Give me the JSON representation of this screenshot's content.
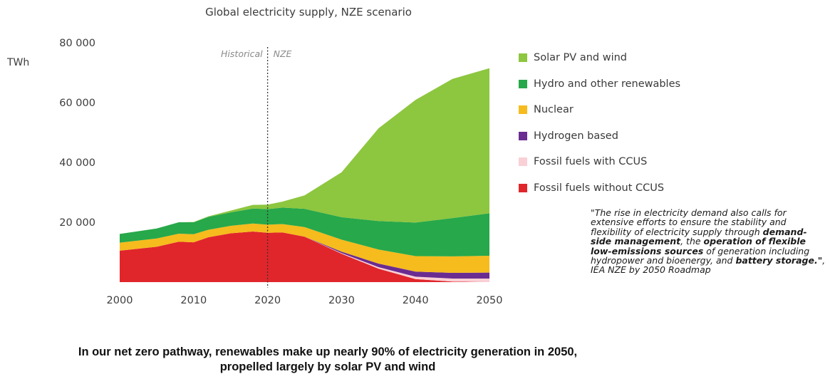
{
  "chart_data": {
    "type": "area",
    "stacked": true,
    "title": "Global electricity supply, NZE scenario",
    "ylabel": "TWh",
    "xlabel": "",
    "ylim": [
      0,
      80000
    ],
    "xlim": [
      2000,
      2050
    ],
    "x_ticks": [
      2000,
      2010,
      2020,
      2030,
      2040,
      2050
    ],
    "x_tick_labels": [
      "2000",
      "2010",
      "2020",
      "2030",
      "2040",
      "2050"
    ],
    "y_ticks": [
      20000,
      40000,
      60000,
      80000
    ],
    "y_tick_labels": [
      "20 000",
      "40 000",
      "60 000",
      "80 000"
    ],
    "grid": false,
    "divider": {
      "x": 2020,
      "left_label": "Historical",
      "right_label": "NZE"
    },
    "x": [
      2000,
      2005,
      2008,
      2010,
      2012,
      2015,
      2018,
      2020,
      2022,
      2025,
      2030,
      2035,
      2040,
      2045,
      2050
    ],
    "series": [
      {
        "name": "Fossil fuels without CCUS",
        "color": "#e0262b",
        "values": [
          10500,
          11800,
          13500,
          13300,
          15000,
          16300,
          16900,
          16500,
          16600,
          15200,
          9500,
          4500,
          1000,
          200,
          0
        ]
      },
      {
        "name": "Fossil fuels with CCUS",
        "color": "#f9d0d5",
        "values": [
          0,
          0,
          0,
          0,
          0,
          0,
          0,
          0,
          0,
          0,
          200,
          500,
          800,
          1000,
          1200
        ]
      },
      {
        "name": "Hydrogen based",
        "color": "#6a2c91",
        "values": [
          0,
          0,
          0,
          0,
          0,
          0,
          0,
          0,
          0,
          0,
          500,
          1200,
          1700,
          1900,
          2000
        ]
      },
      {
        "name": "Nuclear",
        "color": "#f6bb1d",
        "values": [
          2700,
          2800,
          2700,
          2700,
          2500,
          2500,
          2700,
          2700,
          2800,
          3200,
          4000,
          4700,
          5200,
          5500,
          5600
        ]
      },
      {
        "name": "Hydro and other renewables",
        "color": "#27a84a",
        "values": [
          2900,
          3300,
          3800,
          4000,
          4300,
          4500,
          5000,
          5200,
          5500,
          6100,
          7500,
          9500,
          11200,
          12800,
          14200
        ]
      },
      {
        "name": "Solar PV and wind",
        "color": "#8dc63f",
        "values": [
          0,
          0,
          0,
          100,
          200,
          600,
          1200,
          1500,
          2000,
          4500,
          15000,
          31000,
          41000,
          46500,
          48500
        ]
      }
    ]
  },
  "quote": {
    "t1": "\"The rise in electricity demand also calls for extensive efforts to ensure the stability and flexibility of electricity supply through ",
    "b1": "demand-side management",
    "t2": ", the ",
    "b2": "operation of flexible low-emissions sources",
    "t3": " of generation including hydropower and bioenergy, and ",
    "b3": "battery storage.\"",
    "t4": ", IEA NZE by 2050 Roadmap"
  },
  "caption": {
    "line1": "In our net zero pathway, renewables make up nearly 90% of electricity generation in 2050,",
    "line2": "propelled largely by solar PV and wind"
  }
}
